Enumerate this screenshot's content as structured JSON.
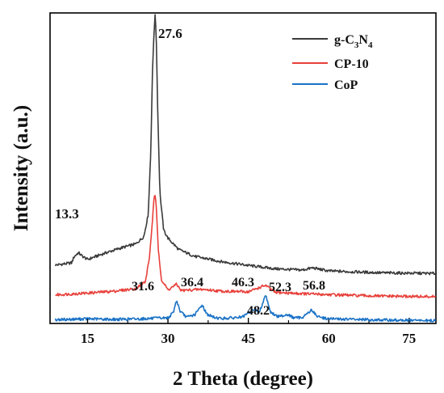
{
  "chart_data": {
    "type": "line",
    "xlabel": "2 Theta (degree)",
    "ylabel": "Intensity (a.u.)",
    "xlim": [
      8,
      80
    ],
    "ylim": [
      0,
      100
    ],
    "xticks": [
      15,
      30,
      45,
      60,
      75
    ],
    "y_tick_labels_shown": false,
    "legend_position": "top-right",
    "series": [
      {
        "name": "g-C3N4",
        "legend_label": {
          "base": "g-C",
          "sub1": "3",
          "mid": "N",
          "sub2": "4"
        },
        "color": "#3a3a3a",
        "x": [
          9,
          12,
          12.5,
          13.3,
          14,
          15,
          18,
          21,
          24,
          25.5,
          26.3,
          26.8,
          27.1,
          27.4,
          27.6,
          27.8,
          28.1,
          28.5,
          29.2,
          30,
          32,
          35,
          40,
          45,
          50,
          55,
          57,
          60,
          65,
          70,
          75,
          80
        ],
        "y": [
          18.8,
          19.5,
          21.5,
          22.8,
          21.7,
          20.6,
          22.5,
          24.2,
          25.6,
          28,
          35,
          55,
          80,
          94,
          99,
          94,
          68,
          42,
          30,
          27.5,
          23.8,
          21.6,
          19.9,
          18.7,
          17.6,
          17.2,
          17.9,
          16.9,
          16.6,
          16.3,
          16.2,
          16.1
        ]
      },
      {
        "name": "CP-10",
        "color": "#e8403a",
        "x": [
          9,
          15,
          20,
          24,
          25.8,
          26.6,
          27.1,
          27.4,
          27.6,
          27.8,
          28.2,
          28.8,
          30,
          31.6,
          32.5,
          36.4,
          40,
          45,
          48.2,
          50,
          55,
          60,
          65,
          70,
          75,
          80
        ],
        "y": [
          9.2,
          9.8,
          10.4,
          11.2,
          13.5,
          22,
          33,
          40,
          41.5,
          38,
          24,
          14,
          10.8,
          12.6,
          10.6,
          11,
          10.4,
          10.2,
          12.3,
          10,
          9.6,
          9.3,
          9,
          8.8,
          8.7,
          8.6
        ]
      },
      {
        "name": "CoP",
        "color": "#1a72c6",
        "x": [
          9,
          15,
          20,
          25,
          30,
          31,
          31.6,
          32.3,
          33.5,
          35,
          36.4,
          37.2,
          38.5,
          40,
          42,
          44,
          46.3,
          47,
          48.2,
          49.2,
          50.5,
          52.3,
          53.5,
          55,
          56.8,
          58,
          60,
          65,
          70,
          75,
          80
        ],
        "y": [
          1.2,
          1.5,
          1.3,
          1.5,
          1.8,
          3.5,
          7.5,
          3.8,
          2,
          2.8,
          6,
          3.1,
          2,
          1.6,
          1.8,
          2.1,
          4.8,
          3.2,
          9.4,
          3.5,
          2.2,
          2.9,
          1.8,
          1.9,
          4.3,
          2.1,
          1.5,
          1.3,
          1.1,
          1,
          0.9
        ]
      }
    ],
    "annotations": [
      "27.6",
      "13.3",
      "31.6",
      "36.4",
      "46.3",
      "52.3",
      "56.8",
      "48.2"
    ]
  }
}
